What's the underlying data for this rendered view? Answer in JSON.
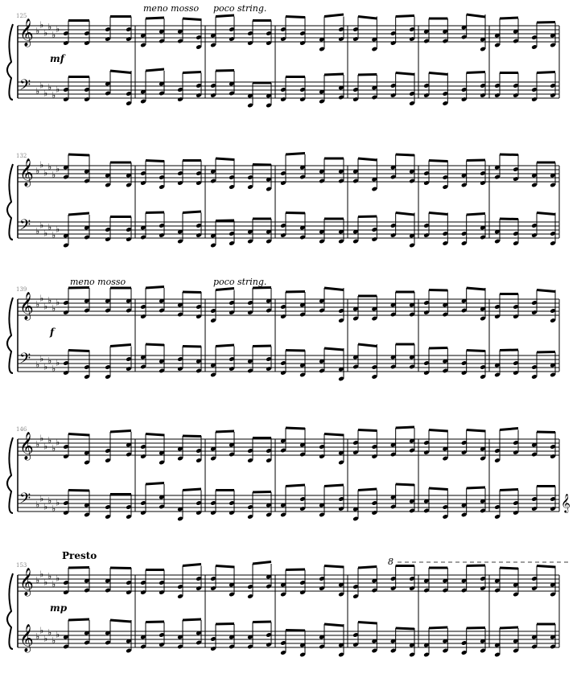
{
  "score": {
    "key_signature": "6 flats",
    "systems": [
      {
        "measure_number": "125",
        "bass_clef": "bass",
        "markings": [
          {
            "type": "expr",
            "text": "meno mosso",
            "measure": 1
          },
          {
            "type": "expr",
            "text": "poco string.",
            "measure": 2
          },
          {
            "type": "dyn",
            "text": "mf",
            "measure": 0
          }
        ]
      },
      {
        "measure_number": "132",
        "bass_clef": "bass",
        "markings": []
      },
      {
        "measure_number": "139",
        "bass_clef": "bass",
        "markings": [
          {
            "type": "expr",
            "text": "meno mosso",
            "measure": 0
          },
          {
            "type": "expr",
            "text": "poco string.",
            "measure": 2
          },
          {
            "type": "dyn",
            "text": "f",
            "measure": 0
          }
        ]
      },
      {
        "measure_number": "146",
        "bass_clef": "bass",
        "end_clef": "treble",
        "markings": []
      },
      {
        "measure_number": "153",
        "bass_clef": "treble",
        "markings": [
          {
            "type": "tempo",
            "text": "Presto",
            "measure": 0
          },
          {
            "type": "dyn",
            "text": "mp",
            "measure": 0
          },
          {
            "type": "ottava",
            "text": "8",
            "measure": 4
          }
        ]
      }
    ]
  }
}
